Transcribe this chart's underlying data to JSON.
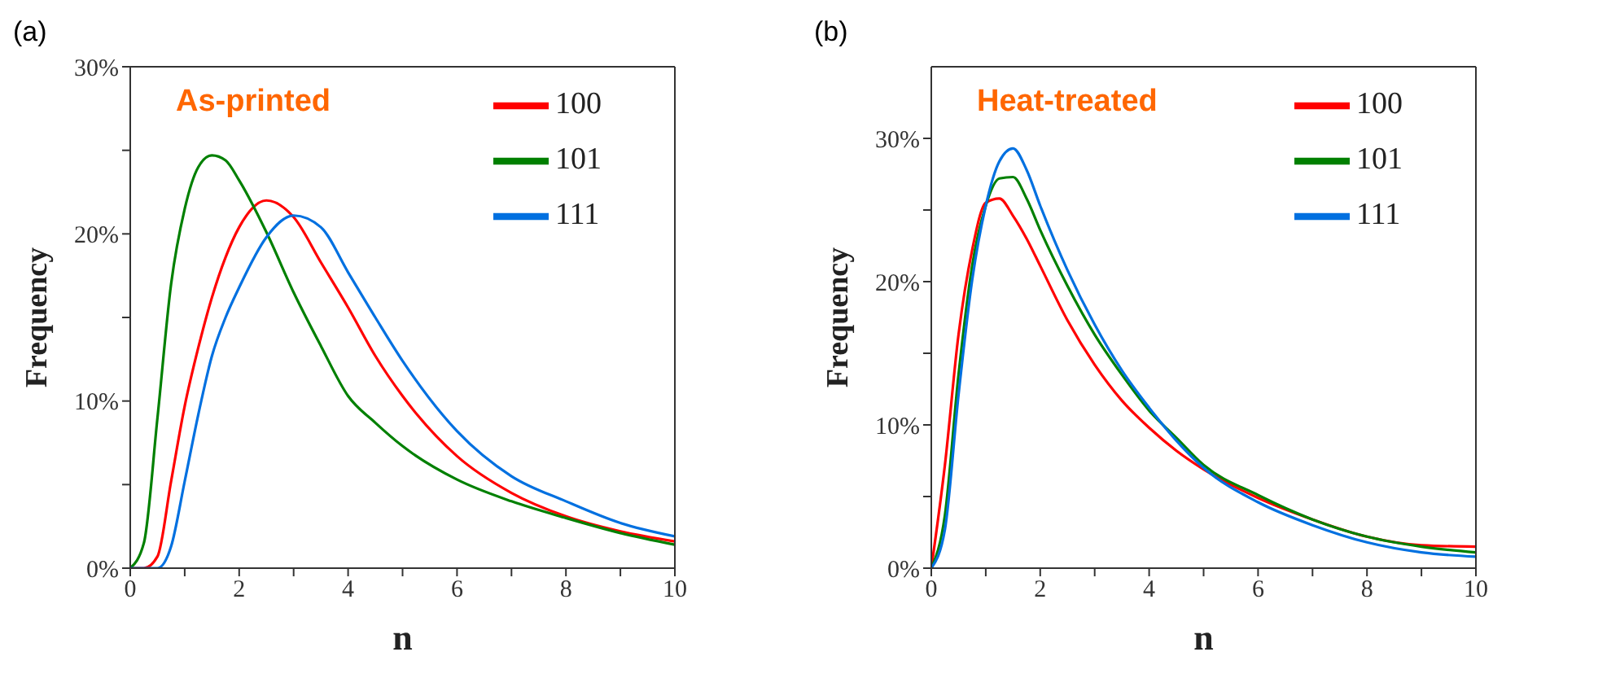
{
  "chart_data": [
    {
      "type": "line",
      "title": "(a)",
      "annotations": [
        "As-printed"
      ],
      "xlabel": "n",
      "ylabel": "Frequency",
      "x": [
        0,
        0.25,
        0.5,
        0.75,
        1,
        1.25,
        1.5,
        1.75,
        2,
        2.5,
        3,
        3.5,
        4,
        4.5,
        5,
        6,
        7,
        8,
        9,
        10
      ],
      "series": [
        {
          "name": "100",
          "color": "#ff0000",
          "values": [
            0,
            0,
            0.7,
            5.2,
            9.7,
            13.2,
            16.2,
            18.6,
            20.4,
            22.0,
            21.0,
            18.3,
            15.6,
            12.7,
            10.3,
            6.7,
            4.5,
            3.1,
            2.2,
            1.6
          ]
        },
        {
          "name": "101",
          "color": "#008000",
          "values": [
            0,
            1.5,
            9,
            17,
            21.5,
            24,
            24.7,
            24.4,
            23.2,
            20.1,
            16.5,
            13.3,
            10.3,
            8.7,
            7.3,
            5.3,
            4.0,
            3.0,
            2.1,
            1.4
          ]
        },
        {
          "name": "111",
          "color": "#0070e0",
          "values": [
            0,
            0,
            0,
            1.3,
            5.2,
            9.2,
            12.7,
            15.0,
            16.8,
            19.8,
            21.1,
            20.4,
            17.7,
            15.0,
            12.4,
            8.2,
            5.5,
            4.0,
            2.7,
            1.9
          ]
        }
      ],
      "xlim": [
        0,
        10
      ],
      "xticks": [
        0,
        {
          "value": 1,
          "label": null
        },
        2,
        {
          "value": 3,
          "label": null
        },
        4,
        {
          "value": 5,
          "label": null
        },
        6,
        {
          "value": 7,
          "label": null
        },
        8,
        {
          "value": 9,
          "label": null
        },
        10
      ],
      "ylim": [
        0,
        30
      ],
      "yticks": [
        {
          "value": 0,
          "label": "0%"
        },
        {
          "value": 5,
          "label": null
        },
        {
          "value": 10,
          "label": "10%"
        },
        {
          "value": 15,
          "label": null
        },
        {
          "value": 20,
          "label": "20%"
        },
        {
          "value": 25,
          "label": null
        },
        {
          "value": 30,
          "label": "30%"
        }
      ],
      "grid": false,
      "legend": "top right",
      "marker": "none",
      "line_style": "solid"
    },
    {
      "type": "line",
      "title": "(b)",
      "annotations": [
        "Heat-treated"
      ],
      "xlabel": "n",
      "ylabel": "Frequency",
      "x": [
        0,
        0.25,
        0.5,
        0.75,
        1,
        1.25,
        1.5,
        1.75,
        2,
        2.5,
        3,
        3.5,
        4,
        4.5,
        5,
        6,
        7,
        8,
        9,
        10
      ],
      "series": [
        {
          "name": "100",
          "color": "#ff0000",
          "values": [
            0,
            7.2,
            16.3,
            22.2,
            25.5,
            25.8,
            24.6,
            23.0,
            21.1,
            17.3,
            14.2,
            11.7,
            9.8,
            8.2,
            6.9,
            4.9,
            3.4,
            2.2,
            1.6,
            1.5
          ]
        },
        {
          "name": "101",
          "color": "#008000",
          "values": [
            0,
            3.7,
            13.5,
            21.1,
            25.3,
            27.2,
            27.3,
            25.8,
            23.6,
            19.7,
            16.3,
            13.5,
            11.0,
            9.1,
            7.2,
            5.1,
            3.4,
            2.2,
            1.5,
            1.1
          ]
        },
        {
          "name": "111",
          "color": "#0070e0",
          "values": [
            0,
            2.7,
            12.1,
            20.1,
            25.3,
            28.4,
            29.3,
            27.8,
            25.3,
            20.8,
            17.0,
            13.8,
            11.2,
            8.9,
            7.0,
            4.6,
            3.0,
            1.8,
            1.1,
            0.8
          ]
        }
      ],
      "xlim": [
        0,
        10
      ],
      "xticks": [
        0,
        {
          "value": 1,
          "label": null
        },
        2,
        {
          "value": 3,
          "label": null
        },
        4,
        {
          "value": 5,
          "label": null
        },
        6,
        {
          "value": 7,
          "label": null
        },
        8,
        {
          "value": 9,
          "label": null
        },
        10
      ],
      "ylim": [
        0,
        35
      ],
      "yticks": [
        {
          "value": 0,
          "label": "0%"
        },
        {
          "value": 5,
          "label": null
        },
        {
          "value": 10,
          "label": "10%"
        },
        {
          "value": 15,
          "label": null
        },
        {
          "value": 20,
          "label": "20%"
        },
        {
          "value": 25,
          "label": null
        },
        {
          "value": 30,
          "label": "30%"
        }
      ],
      "grid": false,
      "legend": "top right",
      "marker": "none",
      "line_style": "solid"
    }
  ]
}
